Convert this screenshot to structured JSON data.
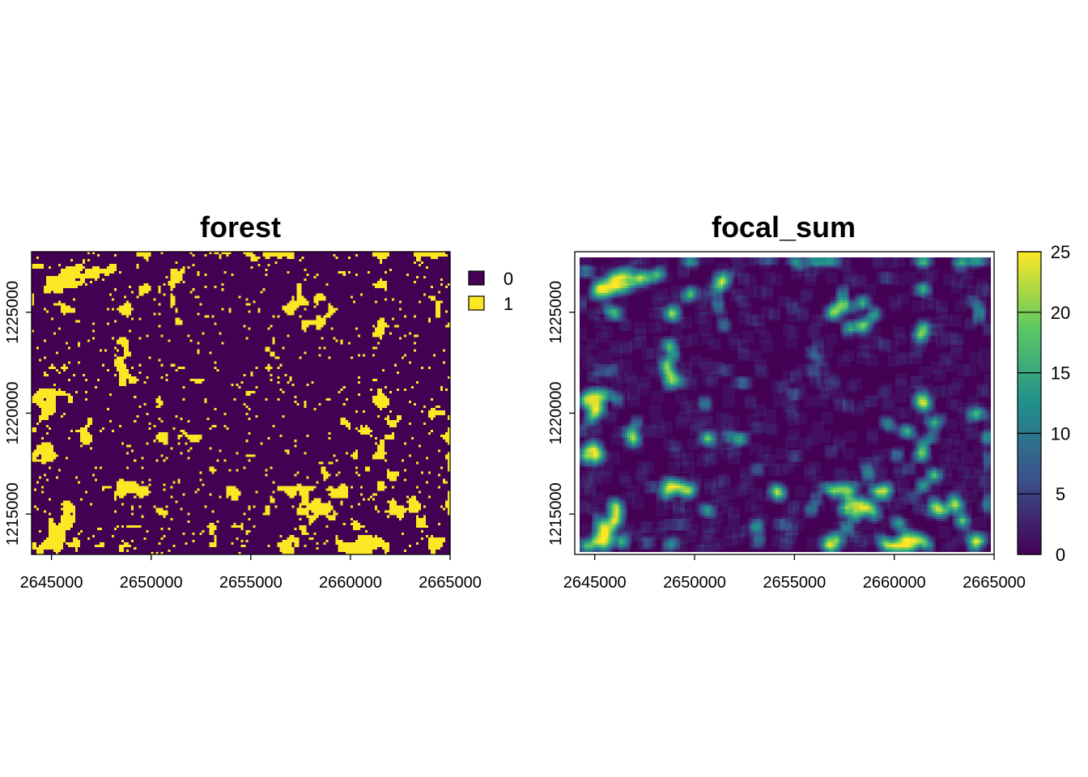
{
  "chart_data": [
    {
      "type": "heatmap",
      "title": "forest",
      "xlabel": "",
      "ylabel": "",
      "xlim": [
        2644000,
        2665000
      ],
      "ylim": [
        1213000,
        1228000
      ],
      "x_ticks": [
        2645000,
        2650000,
        2655000,
        2660000,
        2665000
      ],
      "x_tick_labels": [
        "2645000",
        "2650000",
        "2655000",
        "2660000",
        "2665000"
      ],
      "y_ticks": [
        1215000,
        1220000,
        1225000
      ],
      "y_tick_labels": [
        "1215000",
        "1220000",
        "1225000"
      ],
      "legend": {
        "type": "categorical",
        "position": "right",
        "entries": [
          {
            "label": "0",
            "color": "#440154"
          },
          {
            "label": "1",
            "color": "#FDE725"
          }
        ]
      },
      "values_description": "binary raster (0 = non-forest, 1 = forest)"
    },
    {
      "type": "heatmap",
      "title": "focal_sum",
      "xlabel": "",
      "ylabel": "",
      "xlim": [
        2644000,
        2665000
      ],
      "ylim": [
        1213000,
        1228000
      ],
      "x_ticks": [
        2645000,
        2650000,
        2655000,
        2660000,
        2665000
      ],
      "x_tick_labels": [
        "2645000",
        "2650000",
        "2655000",
        "2660000",
        "2665000"
      ],
      "y_ticks": [
        1215000,
        1220000,
        1225000
      ],
      "y_tick_labels": [
        "1215000",
        "1220000",
        "1225000"
      ],
      "legend": {
        "type": "continuous",
        "position": "right",
        "range": [
          0,
          25
        ],
        "ticks": [
          0,
          5,
          10,
          15,
          20,
          25
        ],
        "tick_labels": [
          "0",
          "5",
          "10",
          "15",
          "20",
          "25"
        ],
        "colormap": [
          "#440154",
          "#3B528B",
          "#21908C",
          "#5DC963",
          "#FDE725"
        ]
      },
      "values_description": "focal sum of forest cells (0 to 25)"
    }
  ]
}
